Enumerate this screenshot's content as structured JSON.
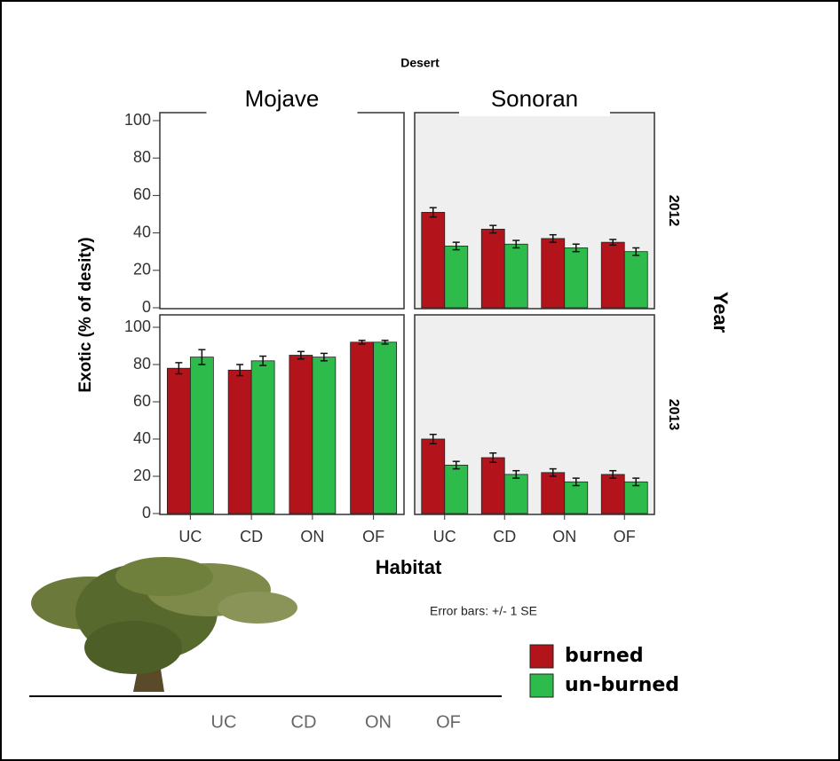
{
  "chart_data": {
    "type": "bar",
    "title": "Desert",
    "xlabel": "Habitat",
    "ylabel": "Exotic (% of desity)",
    "row_title": "Year",
    "columns": [
      "Mojave",
      "Sonoran"
    ],
    "rows": [
      "2012",
      "2013"
    ],
    "categories": [
      "UC",
      "CD",
      "ON",
      "OF"
    ],
    "ylim": [
      0,
      100
    ],
    "yticks": [
      0,
      20,
      40,
      60,
      80,
      100
    ],
    "series": [
      {
        "name": "burned",
        "color": "#b3141c"
      },
      {
        "name": "un-burned",
        "color": "#2dbb4b"
      }
    ],
    "panels": [
      [
        {
          "series": [
            {
              "values": [
                null,
                null,
                null,
                null
              ],
              "errors": [
                null,
                null,
                null,
                null
              ]
            },
            {
              "values": [
                null,
                null,
                null,
                null
              ],
              "errors": [
                null,
                null,
                null,
                null
              ]
            }
          ]
        },
        {
          "series": [
            {
              "values": [
                78,
                77,
                85,
                92
              ],
              "errors": [
                3,
                3,
                2,
                1
              ]
            },
            {
              "values": [
                84,
                82,
                84,
                92
              ],
              "errors": [
                4,
                2.5,
                2,
                1
              ]
            }
          ]
        }
      ],
      [
        {
          "series": [
            {
              "values": [
                51,
                42,
                37,
                35
              ],
              "errors": [
                2.5,
                2,
                2,
                1.5
              ]
            },
            {
              "values": [
                33,
                34,
                32,
                30
              ],
              "errors": [
                2,
                2,
                2,
                2
              ]
            }
          ]
        },
        {
          "series": [
            {
              "values": [
                40,
                30,
                22,
                21
              ],
              "errors": [
                2.5,
                2.5,
                2,
                2
              ]
            },
            {
              "values": [
                26,
                21,
                17,
                17
              ],
              "errors": [
                2,
                2,
                2,
                2
              ]
            }
          ]
        }
      ]
    ],
    "note": "Error bars: +/- 1 SE",
    "illustration_labels": [
      "UC",
      "CD",
      "ON",
      "OF"
    ]
  }
}
